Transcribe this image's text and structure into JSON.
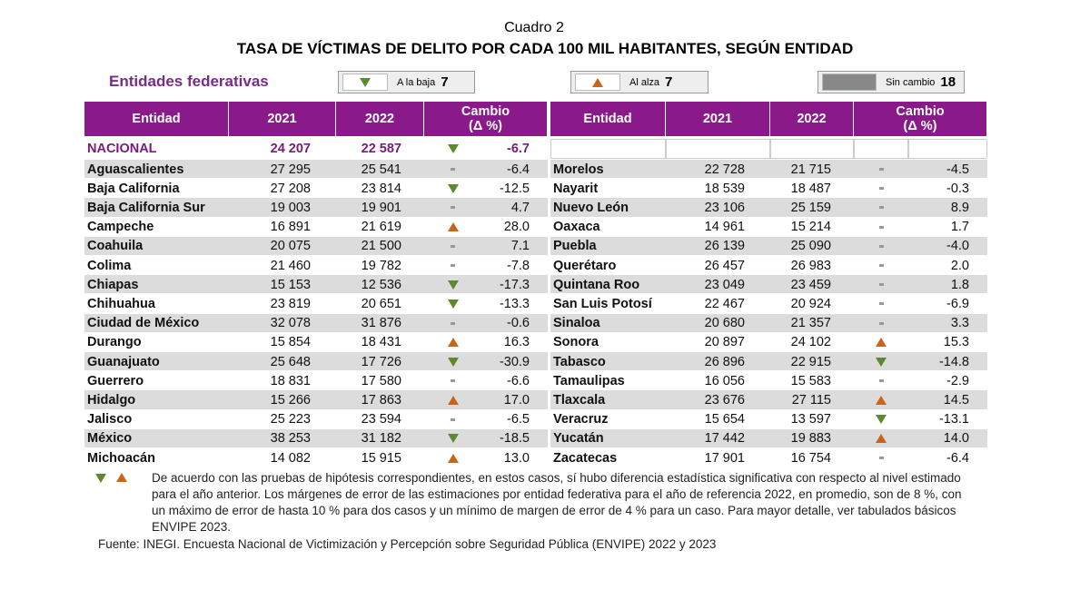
{
  "header": {
    "cuadro": "Cuadro 2",
    "title": "TASA DE VÍCTIMAS DE DELITO POR CADA 100 MIL HABITANTES, SEGÚN ENTIDAD"
  },
  "legend": {
    "title": "Entidades federativas",
    "items": [
      {
        "trend": "down",
        "label": "A la baja",
        "count": "7"
      },
      {
        "trend": "up",
        "label": "Al alza",
        "count": "7"
      },
      {
        "trend": "same",
        "label": "Sin cambio",
        "count": "18"
      }
    ]
  },
  "table": {
    "columns": [
      "Entidad",
      "2021",
      "2022"
    ],
    "change_header": [
      "Cambio",
      "(Δ %)"
    ],
    "national": [
      "NACIONAL",
      "24 207",
      "22 587",
      "down",
      "-6.7"
    ],
    "left": [
      [
        "Aguascalientes",
        "27 295",
        "25 541",
        "same",
        "-6.4"
      ],
      [
        "Baja California",
        "27 208",
        "23 814",
        "down",
        "-12.5"
      ],
      [
        "Baja California Sur",
        "19 003",
        "19 901",
        "same",
        "4.7"
      ],
      [
        "Campeche",
        "16 891",
        "21 619",
        "up",
        "28.0"
      ],
      [
        "Coahuila",
        "20 075",
        "21 500",
        "same",
        "7.1"
      ],
      [
        "Colima",
        "21 460",
        "19 782",
        "same",
        "-7.8"
      ],
      [
        "Chiapas",
        "15 153",
        "12 536",
        "down",
        "-17.3"
      ],
      [
        "Chihuahua",
        "23 819",
        "20 651",
        "down",
        "-13.3"
      ],
      [
        "Ciudad de México",
        "32 078",
        "31 876",
        "same",
        "-0.6"
      ],
      [
        "Durango",
        "15 854",
        "18 431",
        "up",
        "16.3"
      ],
      [
        "Guanajuato",
        "25 648",
        "17 726",
        "down",
        "-30.9"
      ],
      [
        "Guerrero",
        "18 831",
        "17 580",
        "same",
        "-6.6"
      ],
      [
        "Hidalgo",
        "15 266",
        "17 863",
        "up",
        "17.0"
      ],
      [
        "Jalisco",
        "25 223",
        "23 594",
        "same",
        "-6.5"
      ],
      [
        "México",
        "38 253",
        "31 182",
        "down",
        "-18.5"
      ],
      [
        "Michoacán",
        "14 082",
        "15 915",
        "up",
        "13.0"
      ]
    ],
    "right": [
      [
        "Morelos",
        "22 728",
        "21 715",
        "same",
        "-4.5"
      ],
      [
        "Nayarit",
        "18 539",
        "18 487",
        "same",
        "-0.3"
      ],
      [
        "Nuevo León",
        "23 106",
        "25 159",
        "same",
        "8.9"
      ],
      [
        "Oaxaca",
        "14 961",
        "15 214",
        "same",
        "1.7"
      ],
      [
        "Puebla",
        "26 139",
        "25 090",
        "same",
        "-4.0"
      ],
      [
        "Querétaro",
        "26 457",
        "26 983",
        "same",
        "2.0"
      ],
      [
        "Quintana Roo",
        "23 049",
        "23 459",
        "same",
        "1.8"
      ],
      [
        "San Luis Potosí",
        "22 467",
        "20 924",
        "same",
        "-6.9"
      ],
      [
        "Sinaloa",
        "20 680",
        "21 357",
        "same",
        "3.3"
      ],
      [
        "Sonora",
        "20 897",
        "24 102",
        "up",
        "15.3"
      ],
      [
        "Tabasco",
        "26 896",
        "22 915",
        "down",
        "-14.8"
      ],
      [
        "Tamaulipas",
        "16 056",
        "15 583",
        "same",
        "-2.9"
      ],
      [
        "Tlaxcala",
        "23 676",
        "27 115",
        "up",
        "14.5"
      ],
      [
        "Veracruz",
        "15 654",
        "13 597",
        "down",
        "-13.1"
      ],
      [
        "Yucatán",
        "17 442",
        "19 883",
        "up",
        "14.0"
      ],
      [
        "Zacatecas",
        "17 901",
        "16 754",
        "same",
        "-6.4"
      ]
    ]
  },
  "footnote": "De acuerdo con las pruebas de hipótesis correspondientes, en estos casos, sí hubo diferencia estadística significativa con respecto al nivel estimado para el año anterior. Los márgenes de error de las estimaciones por entidad federativa para el año de referencia 2022, en promedio, son de 8 %, con un máximo de error de hasta 10 % para dos casos y un mínimo de margen de error de 4 % para un caso. Para mayor detalle, ver tabulados básicos ENVIPE 2023.",
  "source": "Fuente: INEGI. Encuesta Nacional de Victimización y Percepción sobre Seguridad Pública (ENVIPE) 2022 y 2023"
}
